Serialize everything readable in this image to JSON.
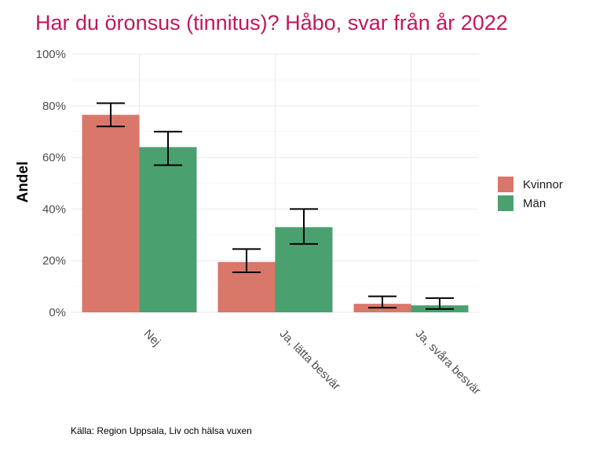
{
  "chart_data": {
    "type": "bar",
    "title": "Har du öronsus (tinnitus)? Håbo, svar från år 2022",
    "xlabel": "",
    "ylabel": "Andel",
    "categories": [
      "Nej",
      "Ja, lätta besvär",
      "Ja, svåra besvär"
    ],
    "yticks": [
      "0%",
      "20%",
      "40%",
      "60%",
      "80%",
      "100%"
    ],
    "ylim": [
      0,
      1
    ],
    "series": [
      {
        "name": "Kvinnor",
        "color": "#d9776a",
        "values": [
          0.765,
          0.195,
          0.033
        ],
        "error_low": [
          0.72,
          0.155,
          0.018
        ],
        "error_high": [
          0.81,
          0.245,
          0.062
        ]
      },
      {
        "name": "Män",
        "color": "#4aa16f",
        "values": [
          0.64,
          0.33,
          0.027
        ],
        "error_low": [
          0.57,
          0.265,
          0.013
        ],
        "error_high": [
          0.7,
          0.4,
          0.055
        ]
      }
    ],
    "legend_position": "right",
    "grid": true,
    "source": "Källa: Region Uppsala, Liv och hälsa vuxen",
    "title_color": "#c2185b"
  }
}
